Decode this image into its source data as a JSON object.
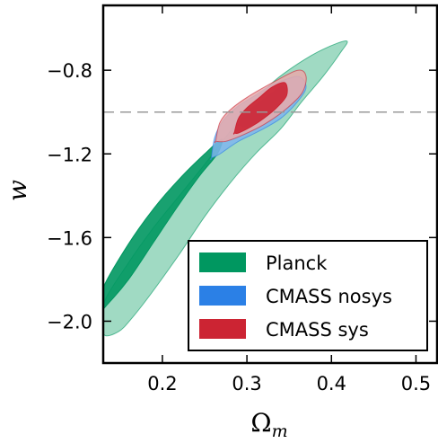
{
  "chart_data": {
    "type": "contour",
    "xlabel": "Ω",
    "xlabel_sub": "m",
    "ylabel": "w",
    "xlim": [
      0.13,
      0.525
    ],
    "ylim": [
      -2.2,
      -0.49
    ],
    "xticks": [
      0.2,
      0.3,
      0.4,
      0.5
    ],
    "xtick_labels": [
      "0.2",
      "0.3",
      "0.4",
      "0.5"
    ],
    "yticks": [
      -0.8,
      -1.2,
      -1.6,
      -2.0
    ],
    "ytick_labels": [
      "−0.8",
      "−1.2",
      "−1.6",
      "−2.0"
    ],
    "reference_line": {
      "y": -1.0,
      "style": "dashed"
    },
    "legend_position": "lower-right",
    "series": [
      {
        "name": "Planck",
        "inner_color": "#009760",
        "outer_color": "#8fd4b8",
        "outer": [
          [
            0.13,
            -1.92
          ],
          [
            0.16,
            -1.72
          ],
          [
            0.19,
            -1.55
          ],
          [
            0.22,
            -1.4
          ],
          [
            0.25,
            -1.25
          ],
          [
            0.275,
            -1.12
          ],
          [
            0.3,
            -0.99
          ],
          [
            0.33,
            -0.86
          ],
          [
            0.36,
            -0.77
          ],
          [
            0.39,
            -0.7
          ],
          [
            0.418,
            -0.66
          ],
          [
            0.41,
            -0.72
          ],
          [
            0.39,
            -0.83
          ],
          [
            0.365,
            -0.95
          ],
          [
            0.34,
            -1.08
          ],
          [
            0.31,
            -1.2
          ],
          [
            0.28,
            -1.34
          ],
          [
            0.25,
            -1.5
          ],
          [
            0.22,
            -1.68
          ],
          [
            0.19,
            -1.85
          ],
          [
            0.165,
            -1.98
          ],
          [
            0.148,
            -2.05
          ],
          [
            0.13,
            -2.06
          ]
        ],
        "inner": [
          [
            0.13,
            -1.84
          ],
          [
            0.16,
            -1.63
          ],
          [
            0.19,
            -1.46
          ],
          [
            0.22,
            -1.32
          ],
          [
            0.25,
            -1.2
          ],
          [
            0.27,
            -1.13
          ],
          [
            0.265,
            -1.2
          ],
          [
            0.245,
            -1.3
          ],
          [
            0.22,
            -1.44
          ],
          [
            0.19,
            -1.62
          ],
          [
            0.16,
            -1.8
          ],
          [
            0.135,
            -1.92
          ],
          [
            0.13,
            -1.93
          ]
        ]
      },
      {
        "name": "CMASS nosys",
        "inner_color": "#2b80e6",
        "outer_color": "#7fb5ef",
        "outer": [
          [
            0.258,
            -1.22
          ],
          [
            0.262,
            -1.12
          ],
          [
            0.272,
            -1.04
          ],
          [
            0.29,
            -0.97
          ],
          [
            0.31,
            -0.92
          ],
          [
            0.33,
            -0.87
          ],
          [
            0.36,
            -0.83
          ],
          [
            0.37,
            -0.88
          ],
          [
            0.36,
            -0.95
          ],
          [
            0.34,
            -1.03
          ],
          [
            0.315,
            -1.09
          ],
          [
            0.29,
            -1.14
          ],
          [
            0.268,
            -1.2
          ],
          [
            0.258,
            -1.22
          ]
        ],
        "inner": [
          [
            0.29,
            -1.06
          ],
          [
            0.3,
            -1.0
          ],
          [
            0.32,
            -0.94
          ],
          [
            0.34,
            -0.88
          ],
          [
            0.345,
            -0.91
          ],
          [
            0.335,
            -0.97
          ],
          [
            0.32,
            -1.02
          ],
          [
            0.3,
            -1.07
          ],
          [
            0.29,
            -1.06
          ]
        ]
      },
      {
        "name": "CMASS sys",
        "inner_color": "#cc2433",
        "outer_color": "#e8a9aa",
        "outer": [
          [
            0.263,
            -1.14
          ],
          [
            0.268,
            -1.05
          ],
          [
            0.28,
            -0.99
          ],
          [
            0.3,
            -0.93
          ],
          [
            0.33,
            -0.86
          ],
          [
            0.36,
            -0.8
          ],
          [
            0.37,
            -0.83
          ],
          [
            0.365,
            -0.91
          ],
          [
            0.345,
            -0.99
          ],
          [
            0.32,
            -1.06
          ],
          [
            0.295,
            -1.11
          ],
          [
            0.275,
            -1.14
          ],
          [
            0.263,
            -1.14
          ]
        ],
        "inner": [
          [
            0.285,
            -1.1
          ],
          [
            0.29,
            -1.03
          ],
          [
            0.3,
            -0.98
          ],
          [
            0.315,
            -0.93
          ],
          [
            0.33,
            -0.88
          ],
          [
            0.345,
            -0.86
          ],
          [
            0.347,
            -0.92
          ],
          [
            0.335,
            -0.98
          ],
          [
            0.32,
            -1.03
          ],
          [
            0.305,
            -1.07
          ],
          [
            0.29,
            -1.1
          ],
          [
            0.285,
            -1.1
          ]
        ]
      }
    ]
  }
}
